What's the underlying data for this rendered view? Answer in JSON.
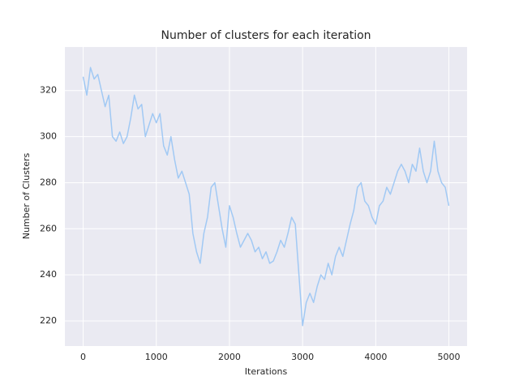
{
  "chart_data": {
    "type": "line",
    "title": "Number of clusters for each iteration",
    "x_label": "Iterations",
    "y_label": "Number of Clusters",
    "x": [
      0,
      50,
      100,
      150,
      200,
      250,
      300,
      350,
      400,
      450,
      500,
      550,
      600,
      650,
      700,
      750,
      800,
      850,
      900,
      950,
      1000,
      1050,
      1100,
      1150,
      1200,
      1250,
      1300,
      1350,
      1400,
      1450,
      1500,
      1550,
      1600,
      1650,
      1700,
      1750,
      1800,
      1850,
      1900,
      1950,
      2000,
      2050,
      2100,
      2150,
      2200,
      2250,
      2300,
      2350,
      2400,
      2450,
      2500,
      2550,
      2600,
      2650,
      2700,
      2750,
      2800,
      2850,
      2900,
      2950,
      3000,
      3050,
      3100,
      3150,
      3200,
      3250,
      3300,
      3350,
      3400,
      3450,
      3500,
      3550,
      3600,
      3650,
      3700,
      3750,
      3800,
      3850,
      3900,
      3950,
      4000,
      4050,
      4100,
      4150,
      4200,
      4250,
      4300,
      4350,
      4400,
      4450,
      4500,
      4550,
      4600,
      4650,
      4700,
      4750,
      4800,
      4850,
      4900,
      4950,
      4999
    ],
    "series": [
      {
        "name": "Number of Clusters",
        "color": "#a1c9f4",
        "values": [
          326,
          318,
          330,
          325,
          327,
          320,
          313,
          318,
          300,
          298,
          302,
          297,
          300,
          308,
          318,
          312,
          314,
          300,
          305,
          310,
          306,
          310,
          296,
          292,
          300,
          290,
          282,
          285,
          280,
          275,
          258,
          250,
          245,
          258,
          265,
          278,
          280,
          270,
          260,
          252,
          270,
          265,
          258,
          252,
          255,
          258,
          255,
          250,
          252,
          247,
          250,
          245,
          246,
          250,
          255,
          252,
          258,
          265,
          262,
          240,
          218,
          228,
          232,
          228,
          235,
          240,
          238,
          245,
          240,
          248,
          252,
          248,
          255,
          262,
          268,
          278,
          280,
          272,
          270,
          265,
          262,
          270,
          272,
          278,
          275,
          280,
          285,
          288,
          285,
          280,
          288,
          285,
          295,
          285,
          280,
          285,
          298,
          285,
          280,
          278,
          270
        ]
      }
    ],
    "xlim": [
      -250,
      5249
    ],
    "ylim": [
      209.1,
      338.9
    ],
    "xticks": [
      0,
      1000,
      2000,
      3000,
      4000,
      5000
    ],
    "yticks": [
      220,
      240,
      260,
      280,
      300,
      320
    ],
    "grid": true
  }
}
